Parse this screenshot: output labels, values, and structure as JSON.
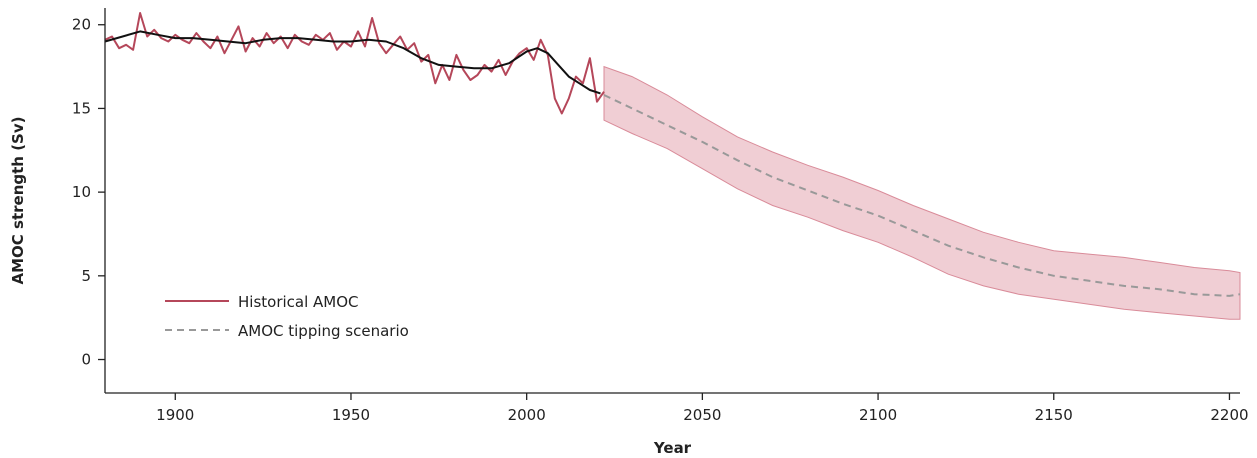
{
  "chart_data": {
    "type": "line",
    "title": "",
    "xlabel": "Year",
    "ylabel": "AMOC strength (Sv)",
    "xlim": [
      1880,
      2203
    ],
    "ylim": [
      -2,
      21
    ],
    "x_ticks": [
      1900,
      1950,
      2000,
      2050,
      2100,
      2150,
      2200
    ],
    "y_ticks": [
      0,
      5,
      10,
      15,
      20
    ],
    "grid": false,
    "legend_position": "bottom-left",
    "colors": {
      "historical": "#b5475a",
      "smoothed": "#111111",
      "scenario": "#999999",
      "band": "#e8b4bd"
    },
    "series": [
      {
        "name": "Historical AMOC",
        "x": [
          1880,
          1882,
          1884,
          1886,
          1888,
          1890,
          1892,
          1894,
          1896,
          1898,
          1900,
          1902,
          1904,
          1906,
          1908,
          1910,
          1912,
          1914,
          1916,
          1918,
          1920,
          1922,
          1924,
          1926,
          1928,
          1930,
          1932,
          1934,
          1936,
          1938,
          1940,
          1942,
          1944,
          1946,
          1948,
          1950,
          1952,
          1954,
          1956,
          1958,
          1960,
          1962,
          1964,
          1966,
          1968,
          1970,
          1972,
          1974,
          1976,
          1978,
          1980,
          1982,
          1984,
          1986,
          1988,
          1990,
          1992,
          1994,
          1996,
          1998,
          2000,
          2002,
          2004,
          2006,
          2008,
          2010,
          2012,
          2014,
          2016,
          2018,
          2020,
          2022
        ],
        "y": [
          19.1,
          19.3,
          18.6,
          18.8,
          18.5,
          20.7,
          19.3,
          19.7,
          19.2,
          19.0,
          19.4,
          19.1,
          18.9,
          19.5,
          19.0,
          18.6,
          19.3,
          18.3,
          19.1,
          19.9,
          18.4,
          19.2,
          18.7,
          19.5,
          18.9,
          19.3,
          18.6,
          19.4,
          19.0,
          18.8,
          19.4,
          19.1,
          19.5,
          18.5,
          19.0,
          18.7,
          19.6,
          18.7,
          20.4,
          18.9,
          18.3,
          18.8,
          19.3,
          18.5,
          18.9,
          17.8,
          18.2,
          16.5,
          17.6,
          16.7,
          18.2,
          17.3,
          16.7,
          17.0,
          17.6,
          17.2,
          17.9,
          17.0,
          17.8,
          18.3,
          18.6,
          17.9,
          19.1,
          18.2,
          15.6,
          14.7,
          15.6,
          16.9,
          16.5,
          18.0,
          15.4,
          16.0
        ]
      },
      {
        "name": "",
        "x": [
          1880,
          1885,
          1890,
          1895,
          1900,
          1905,
          1910,
          1915,
          1920,
          1925,
          1930,
          1935,
          1940,
          1945,
          1950,
          1955,
          1960,
          1965,
          1970,
          1975,
          1980,
          1985,
          1990,
          1995,
          2000,
          2003,
          2006,
          2009,
          2012,
          2015,
          2018,
          2021
        ],
        "y": [
          19.0,
          19.3,
          19.6,
          19.4,
          19.2,
          19.2,
          19.1,
          19.0,
          18.9,
          19.1,
          19.2,
          19.2,
          19.1,
          19.0,
          19.0,
          19.1,
          19.0,
          18.6,
          18.0,
          17.6,
          17.5,
          17.4,
          17.4,
          17.7,
          18.4,
          18.6,
          18.3,
          17.6,
          16.9,
          16.5,
          16.1,
          15.9
        ]
      },
      {
        "name": "AMOC tipping scenario",
        "x": [
          2022,
          2030,
          2040,
          2050,
          2060,
          2070,
          2080,
          2090,
          2100,
          2110,
          2120,
          2130,
          2140,
          2150,
          2160,
          2170,
          2180,
          2190,
          2200,
          2203
        ],
        "y": [
          15.8,
          15.0,
          14.0,
          13.0,
          11.9,
          10.9,
          10.1,
          9.3,
          8.6,
          7.7,
          6.8,
          6.1,
          5.5,
          5.0,
          4.7,
          4.4,
          4.2,
          3.9,
          3.8,
          3.9
        ],
        "lower": [
          14.3,
          13.5,
          12.6,
          11.4,
          10.2,
          9.2,
          8.5,
          7.7,
          7.0,
          6.1,
          5.1,
          4.4,
          3.9,
          3.6,
          3.3,
          3.0,
          2.8,
          2.6,
          2.4,
          2.4
        ],
        "upper": [
          17.5,
          16.9,
          15.8,
          14.5,
          13.3,
          12.4,
          11.6,
          10.9,
          10.1,
          9.2,
          8.4,
          7.6,
          7.0,
          6.5,
          6.3,
          6.1,
          5.8,
          5.5,
          5.3,
          5.2
        ]
      }
    ]
  }
}
